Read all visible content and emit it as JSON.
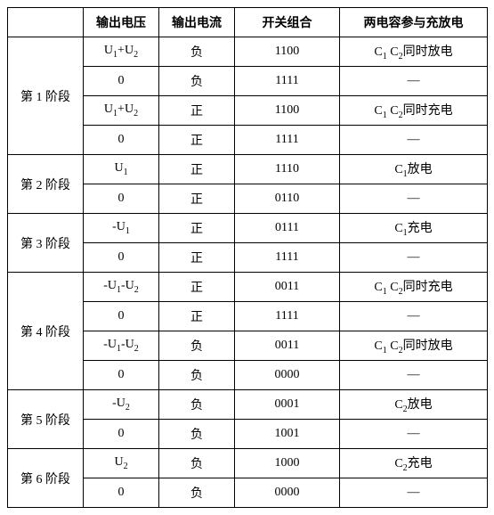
{
  "headers": {
    "stage": "",
    "volt": "输出电压",
    "curr": "输出电流",
    "sw": "开关组合",
    "cap": "两电容参与充放电"
  },
  "stages": {
    "s1": "第 1 阶段",
    "s2": "第 2 阶段",
    "s3": "第 3 阶段",
    "s4": "第 4 阶段",
    "s5": "第 5 阶段",
    "s6": "第 6 阶段"
  },
  "curr": {
    "pos": "正",
    "neg": "负"
  },
  "volt": {
    "u1u2p": "U<sub>1</sub>+U<sub>2</sub>",
    "u1u2m": "-U<sub>1</sub>-U<sub>2</sub>",
    "u1": "U<sub>1</sub>",
    "u1m": "-U<sub>1</sub>",
    "u2": "U<sub>2</sub>",
    "u2m": "-U<sub>2</sub>",
    "zero": "0"
  },
  "sw": {
    "1100": "1100",
    "1111": "1111",
    "1110": "1110",
    "0110": "0110",
    "0111": "0111",
    "0011": "0011",
    "0000": "0000",
    "0001": "0001",
    "1001": "1001",
    "1000": "1000"
  },
  "cap": {
    "c1c2_dis": "C<sub>1</sub> C<sub>2</sub>同时放电",
    "c1c2_chg": "C<sub>1</sub> C<sub>2</sub>同时充电",
    "c1_dis": "C<sub>1</sub>放电",
    "c1_chg": "C<sub>1</sub>充电",
    "c2_dis": "C<sub>2</sub>放电",
    "c2_chg": "C<sub>2</sub>充电",
    "dash": "—"
  }
}
